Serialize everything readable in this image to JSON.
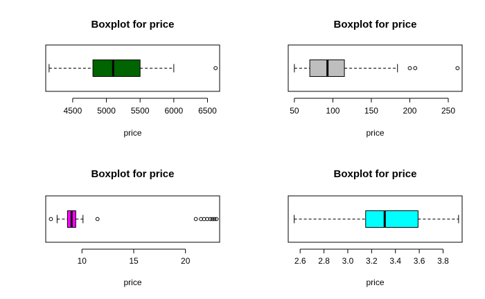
{
  "chart_data": [
    {
      "type": "boxplot",
      "title": "Boxplot for price",
      "xlabel": "price",
      "xlim": [
        4100,
        6680
      ],
      "ticks": [
        "4500",
        "5000",
        "5500",
        "6000",
        "6500"
      ],
      "whisker_low": 4150,
      "q1": 4800,
      "median": 5100,
      "q3": 5500,
      "whisker_high": 6000,
      "outliers": [
        6620
      ],
      "fill": "#006400"
    },
    {
      "type": "boxplot",
      "title": "Boxplot for price",
      "xlabel": "price",
      "xlim": [
        42,
        268
      ],
      "ticks": [
        "50",
        "100",
        "150",
        "200",
        "250"
      ],
      "whisker_low": 50,
      "q1": 70,
      "median": 93,
      "q3": 115,
      "whisker_high": 184,
      "outliers": [
        200,
        207,
        262
      ],
      "fill": "#bebebe"
    },
    {
      "type": "boxplot",
      "title": "Boxplot for price",
      "xlabel": "price",
      "xlim": [
        6.5,
        23.3
      ],
      "ticks": [
        "10",
        "15",
        "20"
      ],
      "whisker_low": 7.6,
      "q1": 8.6,
      "median": 9.0,
      "q3": 9.4,
      "whisker_high": 10.1,
      "outliers": [
        7.0,
        11.5,
        21.0,
        21.5,
        21.8,
        22.1,
        22.4,
        22.6,
        22.8,
        23.0
      ],
      "fill": "#ff00ff"
    },
    {
      "type": "boxplot",
      "title": "Boxplot for price",
      "xlabel": "price",
      "xlim": [
        2.5,
        3.96
      ],
      "ticks": [
        "2.6",
        "2.8",
        "3.0",
        "3.2",
        "3.4",
        "3.6",
        "3.8"
      ],
      "whisker_low": 2.55,
      "q1": 3.15,
      "median": 3.31,
      "q3": 3.59,
      "whisker_high": 3.93,
      "outliers": [],
      "fill": "#00ffff"
    }
  ]
}
